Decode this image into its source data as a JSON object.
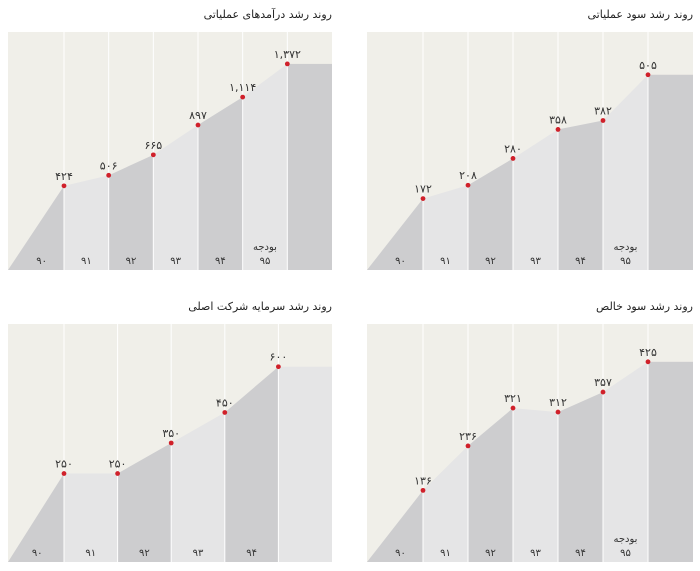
{
  "colors": {
    "background": "#f0efe9",
    "fill_light": "#e5e5e6",
    "fill_dark": "#cdcdcf",
    "marker": "#d0202a",
    "grid": "#ffffff",
    "text": "#333333"
  },
  "chart_data": [
    {
      "type": "area",
      "title": "روند رشد درآمدهای عملیاتی",
      "categories": [
        "۹۰",
        "۹۱",
        "۹۲",
        "۹۳",
        "۹۴",
        "۹۵"
      ],
      "category_notes": [
        "",
        "",
        "",
        "",
        "",
        "بودجه"
      ],
      "values": [
        424,
        506,
        665,
        897,
        1114,
        1372
      ],
      "value_labels": [
        "۴۲۴",
        "۵۰۶",
        "۶۶۵",
        "۸۹۷",
        "۱,۱۱۴",
        "۱,۳۷۲"
      ],
      "ylim": [
        -230,
        1620
      ],
      "grid": true
    },
    {
      "type": "area",
      "title": "روند رشد سود عملیاتی",
      "categories": [
        "۹۰",
        "۹۱",
        "۹۲",
        "۹۳",
        "۹۴",
        "۹۵"
      ],
      "category_notes": [
        "",
        "",
        "",
        "",
        "",
        "بودجه"
      ],
      "values": [
        172,
        208,
        280,
        358,
        382,
        505
      ],
      "value_labels": [
        "۱۷۲",
        "۲۰۸",
        "۲۸۰",
        "۳۵۸",
        "۳۸۲",
        "۵۰۵"
      ],
      "ylim": [
        -20,
        620
      ],
      "grid": true
    },
    {
      "type": "area",
      "title": "روند رشد سرمایه شرکت اصلی",
      "categories": [
        "۹۰",
        "۹۱",
        "۹۲",
        "۹۳",
        "۹۴"
      ],
      "category_notes": [
        "",
        "",
        "",
        "",
        ""
      ],
      "values": [
        250,
        250,
        350,
        450,
        600
      ],
      "value_labels": [
        "۲۵۰",
        "۲۵۰",
        "۳۵۰",
        "۴۵۰",
        "۶۰۰"
      ],
      "ylim": [
        -40,
        740
      ],
      "grid": true
    },
    {
      "type": "area",
      "title": "روند رشد سود خالص",
      "categories": [
        "۹۰",
        "۹۱",
        "۹۲",
        "۹۳",
        "۹۴",
        "۹۵"
      ],
      "category_notes": [
        "",
        "",
        "",
        "",
        "",
        "بودجه"
      ],
      "values": [
        136,
        236,
        321,
        312,
        357,
        425
      ],
      "value_labels": [
        "۱۳۶",
        "۲۳۶",
        "۳۲۱",
        "۳۱۲",
        "۳۵۷",
        "۴۲۵"
      ],
      "ylim": [
        -25,
        510
      ],
      "grid": true
    }
  ]
}
